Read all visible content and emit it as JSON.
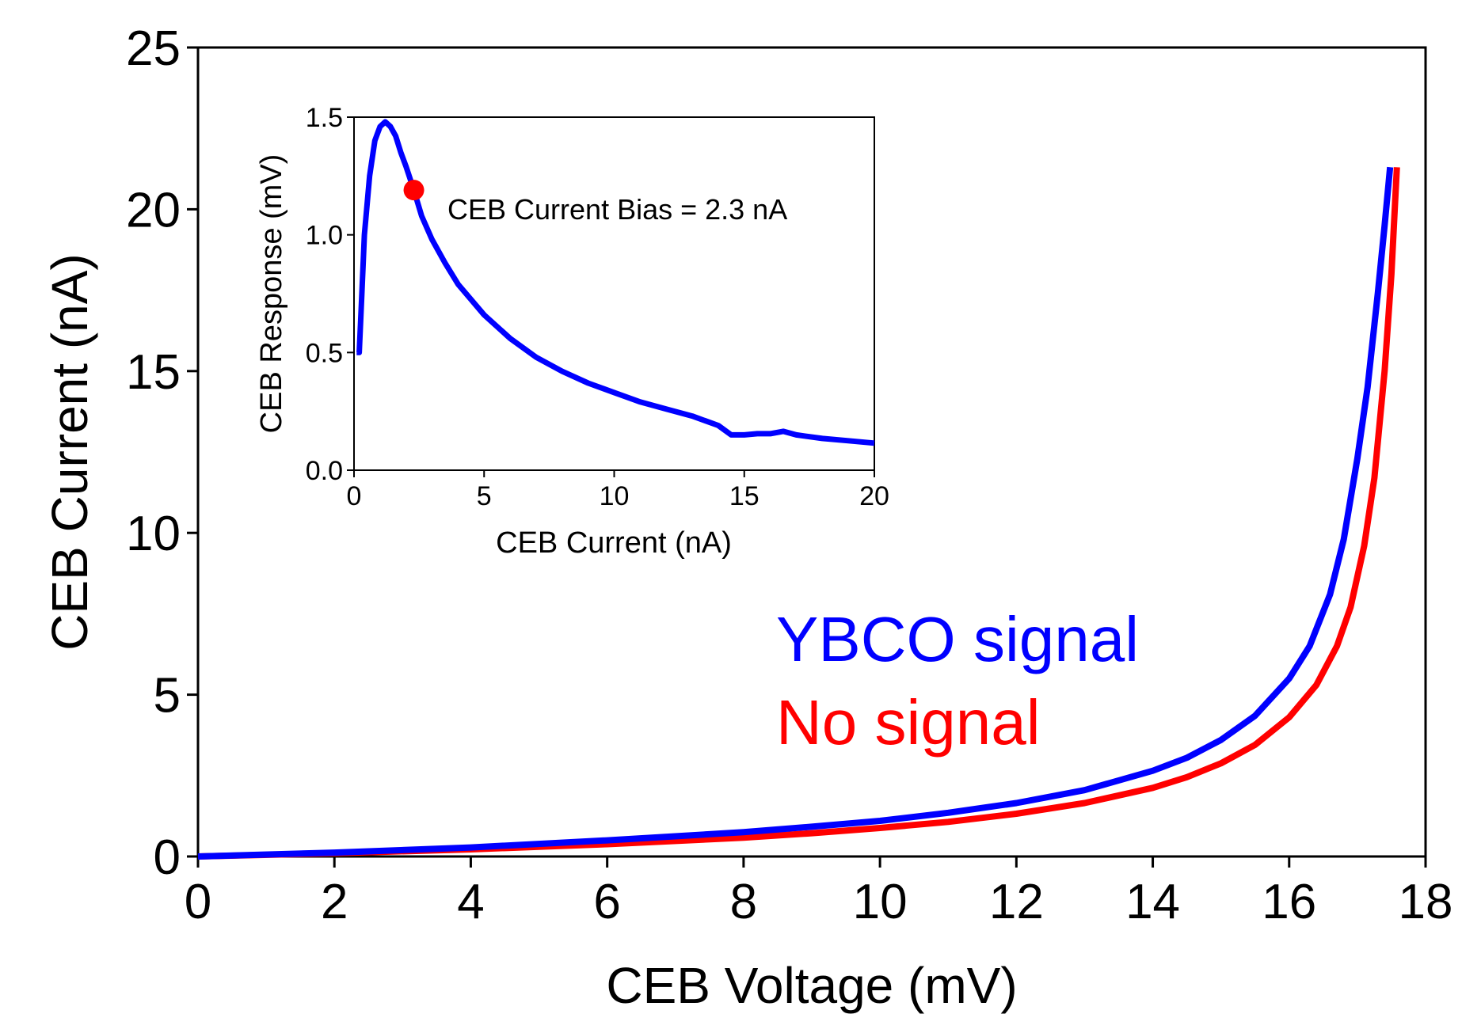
{
  "chart_data": [
    {
      "type": "line",
      "role": "main",
      "xlabel": "CEB Voltage (mV)",
      "ylabel": "CEB Current (nA)",
      "xlim": [
        0,
        18
      ],
      "ylim": [
        0,
        25
      ],
      "xticks": [
        0,
        2,
        4,
        6,
        8,
        10,
        12,
        14,
        16,
        18
      ],
      "yticks": [
        0,
        5,
        10,
        15,
        20,
        25
      ],
      "legend_position": "center-right",
      "series": [
        {
          "name": "YBCO signal",
          "color": "#0000ff",
          "x": [
            0,
            2,
            4,
            6,
            8,
            9,
            10,
            11,
            12,
            13,
            14,
            14.5,
            15,
            15.5,
            16,
            16.3,
            16.6,
            16.8,
            17,
            17.15,
            17.3,
            17.4,
            17.48
          ],
          "y": [
            0,
            0.12,
            0.28,
            0.5,
            0.75,
            0.92,
            1.1,
            1.35,
            1.65,
            2.05,
            2.65,
            3.05,
            3.6,
            4.35,
            5.5,
            6.5,
            8.1,
            9.8,
            12.3,
            14.5,
            17.4,
            19.5,
            21.3
          ]
        },
        {
          "name": "No signal",
          "color": "#ff0000",
          "x": [
            0,
            2,
            4,
            6,
            8,
            9,
            10,
            11,
            12,
            13,
            14,
            14.5,
            15,
            15.5,
            16,
            16.4,
            16.7,
            16.9,
            17.1,
            17.25,
            17.4,
            17.5,
            17.58
          ],
          "y": [
            0,
            0.1,
            0.22,
            0.38,
            0.58,
            0.72,
            0.88,
            1.07,
            1.32,
            1.65,
            2.12,
            2.45,
            2.88,
            3.45,
            4.3,
            5.3,
            6.5,
            7.7,
            9.6,
            11.7,
            15.0,
            18.0,
            21.3
          ]
        }
      ]
    },
    {
      "type": "line",
      "role": "inset",
      "xlabel": "CEB Current (nA)",
      "ylabel": "CEB Response (mV)",
      "xlim": [
        0,
        20
      ],
      "ylim": [
        0,
        1.5
      ],
      "xticks": [
        0,
        5,
        10,
        15,
        20
      ],
      "ytick_labels": [
        "0.0",
        "0.5",
        "1.0",
        "1.5"
      ],
      "series": [
        {
          "name": "CEB Response",
          "color": "#0000ff",
          "x": [
            0.1,
            0.2,
            0.3,
            0.4,
            0.6,
            0.8,
            1.0,
            1.2,
            1.4,
            1.6,
            1.8,
            2.0,
            2.3,
            2.6,
            3.0,
            3.5,
            4.0,
            5.0,
            6.0,
            7.0,
            8.0,
            9.0,
            10.0,
            11.0,
            12.0,
            13.0,
            13.5,
            14.0,
            14.5,
            15.0,
            15.5,
            16.0,
            16.5,
            17.0,
            18.0,
            19.0,
            20.0
          ],
          "y": [
            0.5,
            0.5,
            0.75,
            1.0,
            1.25,
            1.4,
            1.46,
            1.48,
            1.46,
            1.42,
            1.35,
            1.29,
            1.19,
            1.08,
            0.98,
            0.88,
            0.79,
            0.66,
            0.56,
            0.48,
            0.42,
            0.37,
            0.33,
            0.29,
            0.26,
            0.23,
            0.21,
            0.19,
            0.15,
            0.15,
            0.155,
            0.155,
            0.165,
            0.15,
            0.135,
            0.125,
            0.115
          ]
        }
      ],
      "marker": {
        "x": 2.3,
        "y": 1.19,
        "color": "#ff0000"
      },
      "annotation": "CEB Current Bias = 2.3 nA"
    }
  ]
}
